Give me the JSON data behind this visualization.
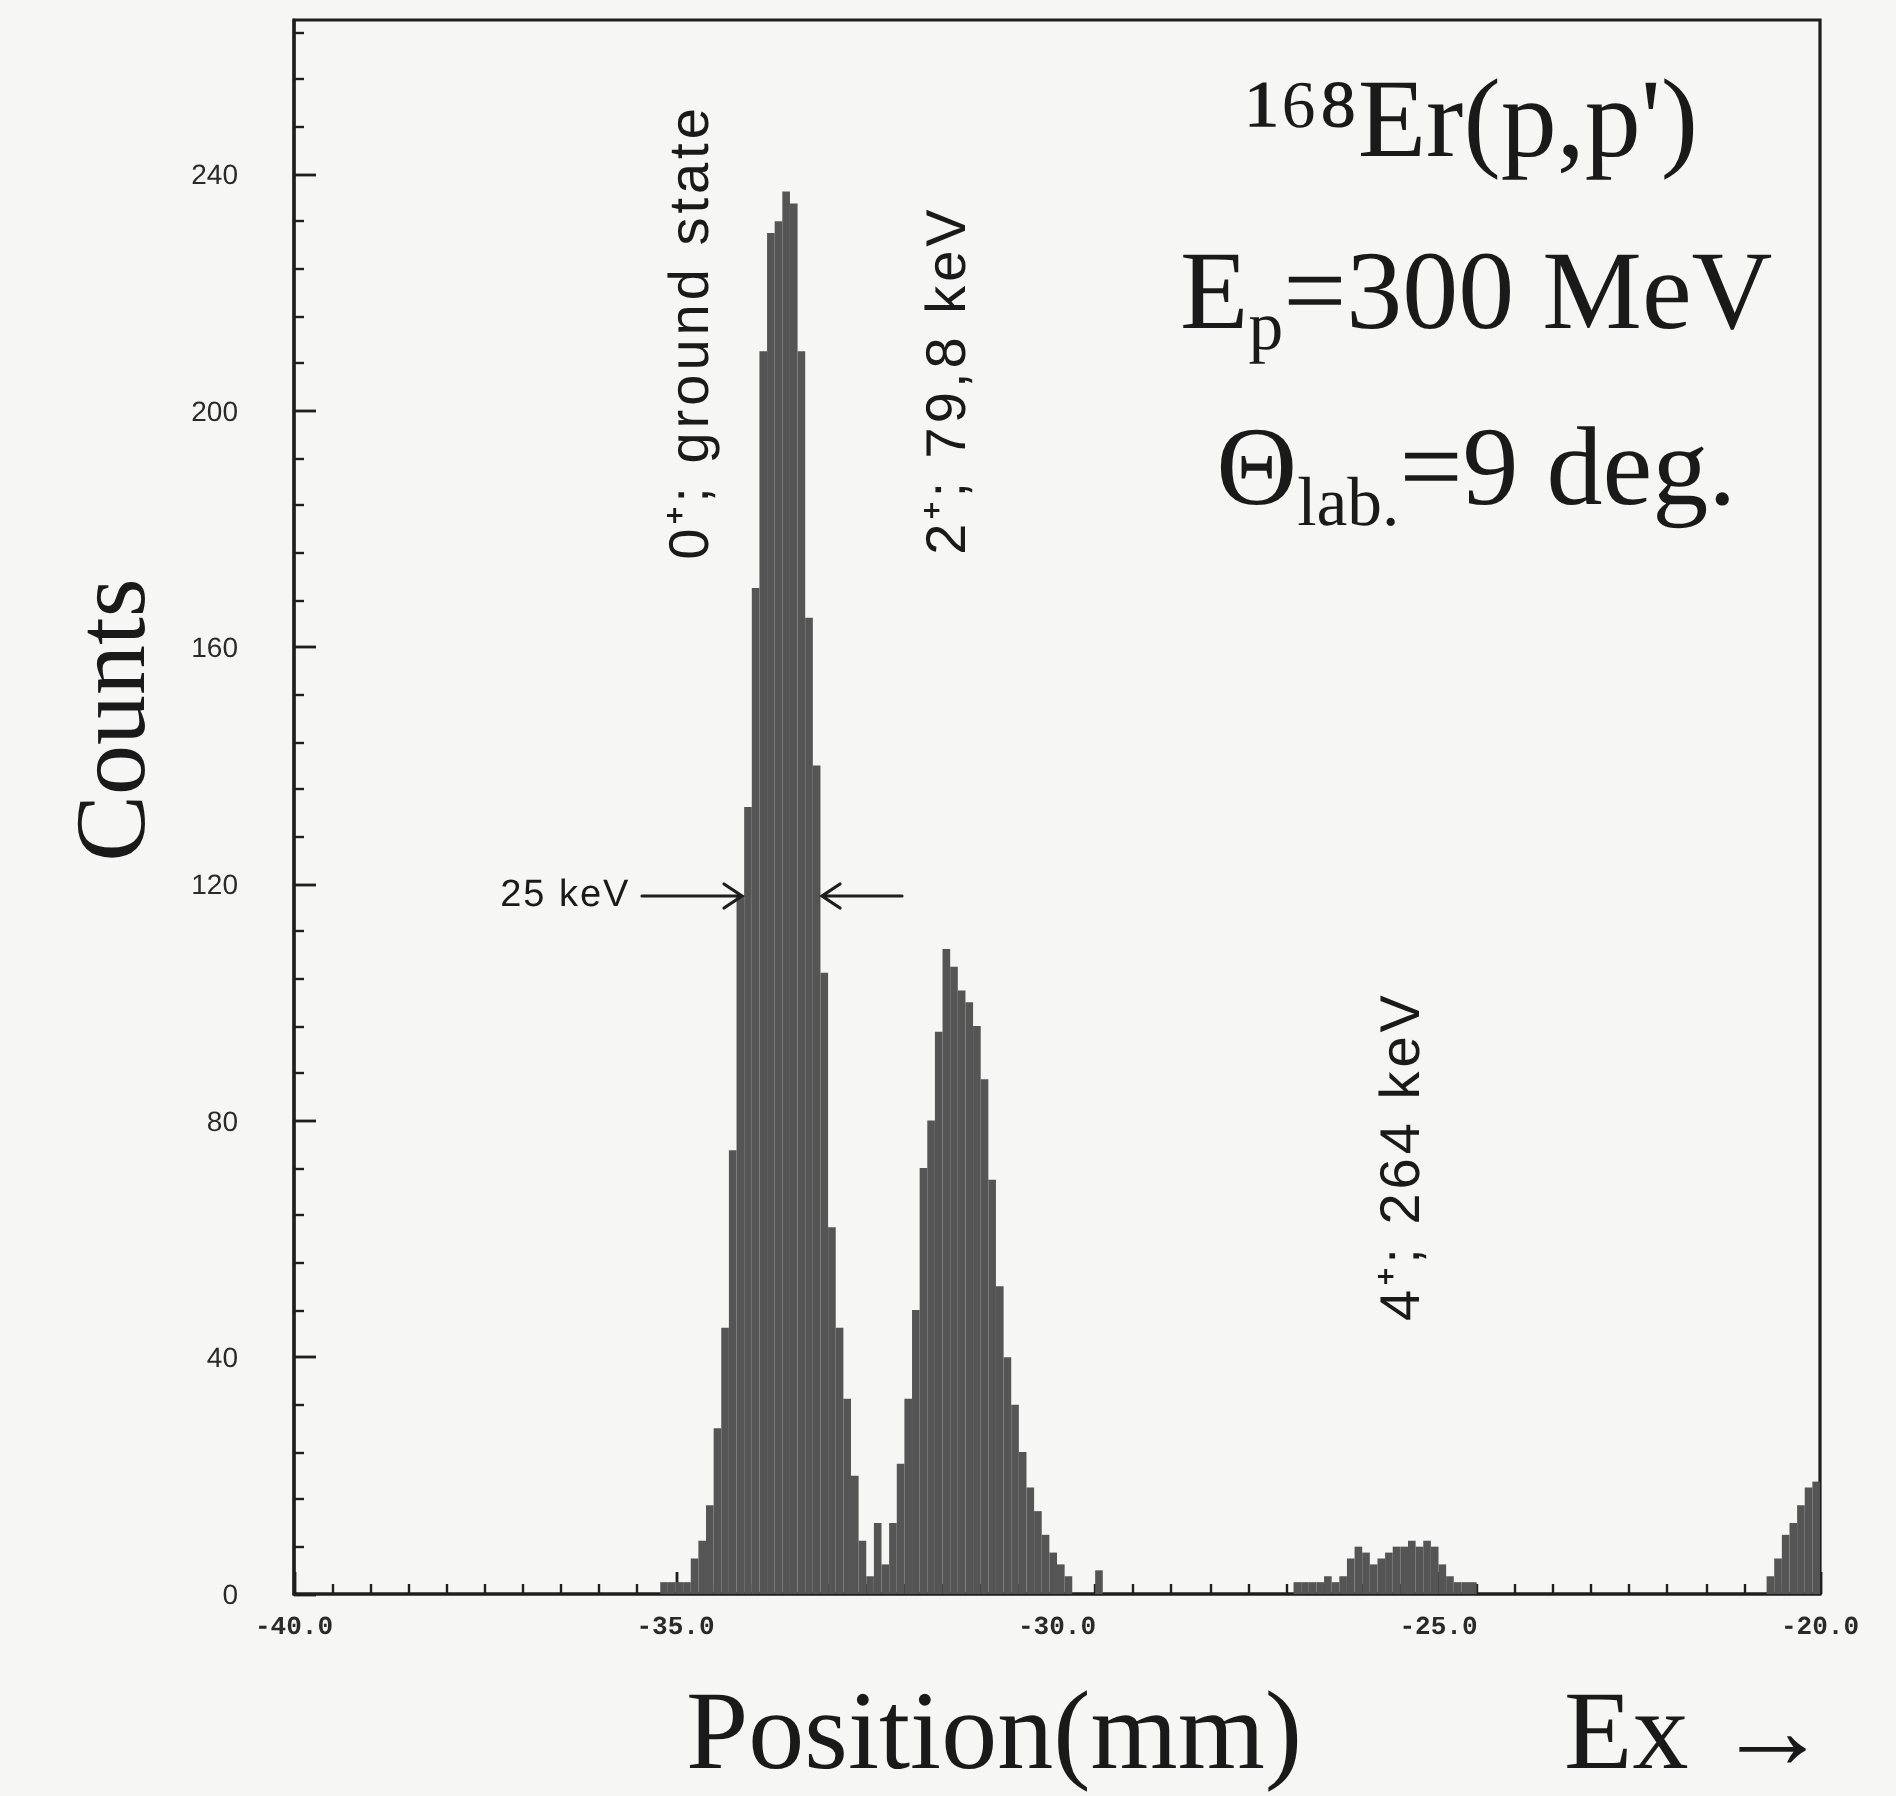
{
  "chart_data": {
    "type": "histogram",
    "title": "¹⁶⁸Er(p,p')",
    "subtitle": "E$_{p}$=300 MeV\nΘ$_{lab.}$=9 deg.",
    "xlabel": "Position(mm)",
    "ylabel": "Counts",
    "color": "#555555",
    "bins": [
      -35.2,
      -35.1,
      -35,
      -34.9,
      -34.8,
      -34.7,
      -34.6,
      -34.5,
      -34.4,
      -34.3,
      -34.2,
      -34.1,
      -34,
      -33.9,
      -33.8,
      -33.7,
      -33.6,
      -33.5,
      -33.4,
      -33.3,
      -33.2,
      -33.1,
      -33,
      -32.9,
      -32.8,
      -32.7,
      -32.6,
      -32.5,
      -32.4,
      -32.3,
      -32.2,
      -32.1,
      -32,
      -31.9,
      -31.8,
      -31.7,
      -31.6,
      -31.5,
      -31.4,
      -31.3,
      -31.2,
      -31.1,
      -31,
      -30.9,
      -30.8,
      -30.7,
      -30.6,
      -30.5,
      -30.4,
      -30.3,
      -30.2,
      -30.1,
      -30,
      -29.9,
      -29.8,
      -29.5,
      -29.4,
      -26.9,
      -26.8,
      -26.7,
      -26.6,
      -26.5,
      -26.4,
      -26.3,
      -26.2,
      -26.1,
      -26,
      -25.9,
      -25.8,
      -25.7,
      -25.6,
      -25.5,
      -25.4,
      -25.3,
      -25.2,
      -25.1,
      -25,
      -24.9,
      -24.8,
      -24.7,
      -24.6,
      -24.5,
      -20.7,
      -20.6,
      -20.5,
      -20.4,
      -20.3,
      -20.2,
      -20.1,
      -20
    ],
    "values": [
      2,
      2,
      2,
      2,
      6,
      9,
      15,
      28,
      45,
      75,
      118,
      133,
      170,
      210,
      230,
      232,
      237,
      235,
      210,
      165,
      140,
      105,
      62,
      45,
      33,
      20,
      9,
      3,
      12,
      5,
      12,
      22,
      33,
      48,
      72,
      80,
      95,
      109,
      106,
      102,
      100,
      96,
      87,
      70,
      52,
      40,
      32,
      24,
      18,
      14,
      10,
      7,
      5,
      3,
      0,
      4,
      0,
      2,
      2,
      2,
      2,
      3,
      2,
      3,
      6,
      8,
      7,
      5,
      6,
      7,
      8,
      8,
      9,
      8,
      9,
      8,
      5,
      3,
      2,
      2,
      2,
      0,
      3,
      6,
      10,
      12,
      15,
      18,
      19
    ],
    "xlim": [
      -40,
      -20
    ],
    "xticks": [
      {
        "value": -40,
        "label": "-40.0"
      },
      {
        "value": -39.5,
        "label": null
      },
      {
        "value": -39,
        "label": null
      },
      {
        "value": -38.5,
        "label": null
      },
      {
        "value": -38,
        "label": null
      },
      {
        "value": -37.5,
        "label": null
      },
      {
        "value": -37,
        "label": null
      },
      {
        "value": -36.5,
        "label": null
      },
      {
        "value": -36,
        "label": null
      },
      {
        "value": -35.5,
        "label": null
      },
      {
        "value": -35,
        "label": "-35.0"
      },
      {
        "value": -34.5,
        "label": null
      },
      {
        "value": -34,
        "label": null
      },
      {
        "value": -33.5,
        "label": null
      },
      {
        "value": -33,
        "label": null
      },
      {
        "value": -32.5,
        "label": null
      },
      {
        "value": -32,
        "label": null
      },
      {
        "value": -31.5,
        "label": null
      },
      {
        "value": -31,
        "label": null
      },
      {
        "value": -30.5,
        "label": null
      },
      {
        "value": -30,
        "label": "-30.0"
      },
      {
        "value": -29.5,
        "label": null
      },
      {
        "value": -29,
        "label": null
      },
      {
        "value": -28.5,
        "label": null
      },
      {
        "value": -28,
        "label": null
      },
      {
        "value": -27.5,
        "label": null
      },
      {
        "value": -27,
        "label": null
      },
      {
        "value": -26.5,
        "label": null
      },
      {
        "value": -26,
        "label": null
      },
      {
        "value": -25.5,
        "label": null
      },
      {
        "value": -25,
        "label": "-25.0"
      },
      {
        "value": -24.5,
        "label": null
      },
      {
        "value": -24,
        "label": null
      },
      {
        "value": -23.5,
        "label": null
      },
      {
        "value": -23,
        "label": null
      },
      {
        "value": -22.5,
        "label": null
      },
      {
        "value": -22,
        "label": null
      },
      {
        "value": -21.5,
        "label": null
      },
      {
        "value": -21,
        "label": null
      },
      {
        "value": -20.5,
        "label": null
      },
      {
        "value": -20,
        "label": "-20.0"
      }
    ],
    "ylim": [
      0,
      266
    ],
    "yticks": [
      0,
      {
        "value": 8,
        "label": null
      },
      {
        "value": 16,
        "label": null
      },
      {
        "value": 24,
        "label": null
      },
      {
        "value": 32,
        "label": null
      },
      40,
      {
        "value": 48,
        "label": null
      },
      {
        "value": 56,
        "label": null
      },
      {
        "value": 64,
        "label": null
      },
      {
        "value": 72,
        "label": null
      },
      80,
      {
        "value": 88,
        "label": null
      },
      {
        "value": 96,
        "label": null
      },
      {
        "value": 104,
        "label": null
      },
      {
        "value": 112,
        "label": null
      },
      120,
      {
        "value": 128,
        "label": null
      },
      {
        "value": 136,
        "label": null
      },
      {
        "value": 144,
        "label": null
      },
      {
        "value": 152,
        "label": null
      },
      160,
      {
        "value": 168,
        "label": null
      },
      {
        "value": 176,
        "label": null
      },
      {
        "value": 184,
        "label": null
      },
      {
        "value": 192,
        "label": null
      },
      200,
      {
        "value": 208,
        "label": null
      },
      {
        "value": 216,
        "label": null
      },
      {
        "value": 224,
        "label": null
      },
      {
        "value": 232,
        "label": null
      },
      240,
      {
        "value": 248,
        "label": null
      },
      {
        "value": 256,
        "label": null
      },
      {
        "value": 264,
        "label": null
      }
    ],
    "annotations": [
      "0⁺; ground state",
      "2⁺; 79,8 keV",
      "4⁺; 264 keV",
      {
        "text": "25 keV",
        "x": -34.1,
        "y": 118
      },
      "Ex →"
    ]
  }
}
